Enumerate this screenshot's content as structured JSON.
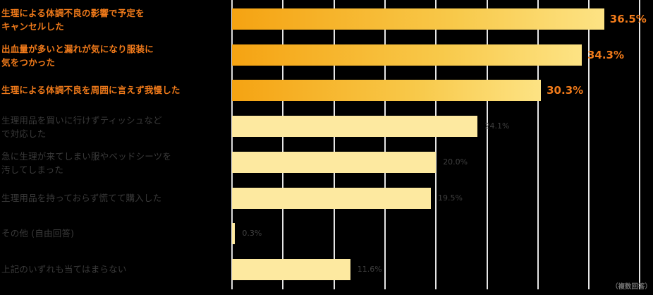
{
  "chart_data": {
    "type": "bar",
    "orientation": "horizontal",
    "title": "",
    "xlabel": "",
    "ylabel": "",
    "xlim": [
      0,
      40
    ],
    "grid": true,
    "gridline_step": 5,
    "note": "（複数回答）",
    "categories": [
      "生理による体調不良の影響で予定をキャンセルした",
      "出血量が多いと漏れが気になり服装に気をつかった",
      "生理による体調不良を周囲に言えず我慢した",
      "生理用品を買いに行けずティッシュなどで対応した",
      "急に生理が来てしまい服やベッドシーツを汚してしまった",
      "生理用品を持っておらず慌てて購入した",
      "その他 (自由回答)",
      "上記のいずれも当てはまらない"
    ],
    "values": [
      36.5,
      34.3,
      30.3,
      24.1,
      20.0,
      19.5,
      0.3,
      11.6
    ],
    "value_labels": [
      "36.5%",
      "34.3%",
      "30.3%",
      "24.1%",
      "20.0%",
      "19.5%",
      "0.3%",
      "11.6%"
    ],
    "highlighted_top": 3
  },
  "rows": [
    {
      "line1": "生理による体調不良の影響で予定を",
      "line2": "キャンセルした",
      "value": 36.5,
      "label": "36.5%",
      "highlight": true
    },
    {
      "line1": "出血量が多いと漏れが気になり服装に",
      "line2": "気をつかった",
      "value": 34.3,
      "label": "34.3%",
      "highlight": true
    },
    {
      "line1": "生理による体調不良を周囲に言えず我慢した",
      "line2": "",
      "value": 30.3,
      "label": "30.3%",
      "highlight": true
    },
    {
      "line1": "生理用品を買いに行けずティッシュなど",
      "line2": "で対応した",
      "value": 24.1,
      "label": "24.1%",
      "highlight": false
    },
    {
      "line1": "急に生理が来てしまい服やベッドシーツを",
      "line2": "汚してしまった",
      "value": 20.0,
      "label": "20.0%",
      "highlight": false
    },
    {
      "line1": "生理用品を持っておらず慌てて購入した",
      "line2": "",
      "value": 19.5,
      "label": "19.5%",
      "highlight": false
    },
    {
      "line1": "その他 (自由回答)",
      "line2": "",
      "value": 0.3,
      "label": "0.3%",
      "highlight": false
    },
    {
      "line1": "上記のいずれも当てはまらない",
      "line2": "",
      "value": 11.6,
      "label": "11.6%",
      "highlight": false
    }
  ],
  "note": "（複数回答）",
  "colors": {
    "highlight_text": "#f07a1a",
    "highlight_bar_start": "#f5a312",
    "highlight_bar_end": "#fde384",
    "normal_bar": "#fde9a0",
    "normal_text": "#3a3a3a",
    "gridline": "#e6e6e6",
    "background": "#000000"
  }
}
